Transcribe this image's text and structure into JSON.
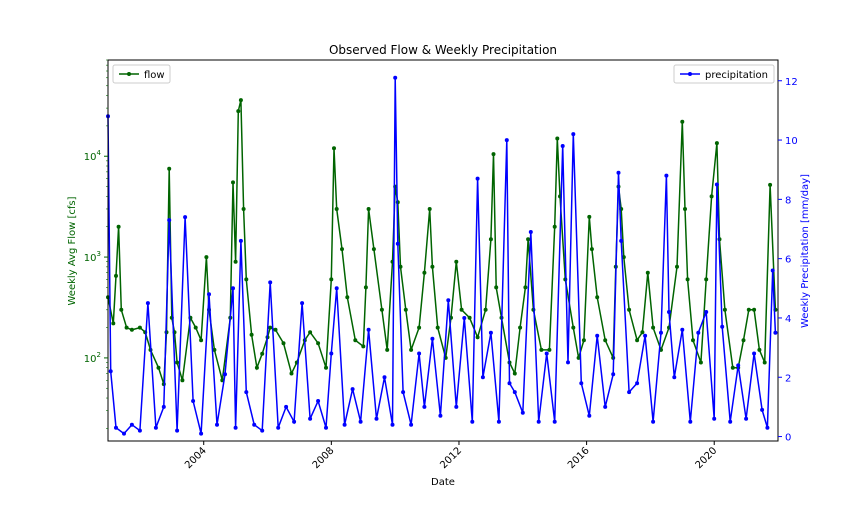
{
  "chart_data": {
    "type": "line",
    "title": "Observed Flow & Weekly Precipitation",
    "xlabel": "Date",
    "ylabel_left": "Weekly Avg Flow [cfs]",
    "ylabel_right": "Weekly Precipitation [mm/day]",
    "xlim": [
      "2001-01-01",
      "2021-12-31"
    ],
    "x_ticks": [
      "2004",
      "2008",
      "2012",
      "2016",
      "2020"
    ],
    "y_left": {
      "scale": "log",
      "ylim": [
        15,
        90000
      ],
      "ticks": [
        100,
        1000,
        10000
      ]
    },
    "y_right": {
      "scale": "linear",
      "ylim": [
        -0.15,
        12.7
      ],
      "ticks": [
        0,
        2,
        4,
        6,
        8,
        10,
        12
      ]
    },
    "legend_left": "upper-left",
    "legend_right": "upper-right",
    "colors": {
      "flow": "#006400",
      "precipitation": "#0000ff"
    },
    "grid": false,
    "series": [
      {
        "name": "flow",
        "axis": "left",
        "color": "#006400",
        "x": [
          "2001-01",
          "2001-03",
          "2001-04",
          "2001-05",
          "2001-06",
          "2001-08",
          "2001-10",
          "2002-01",
          "2002-03",
          "2002-05",
          "2002-08",
          "2002-10",
          "2002-11",
          "2002-12",
          "2003-01",
          "2003-02",
          "2003-03",
          "2003-05",
          "2003-08",
          "2003-10",
          "2003-12",
          "2004-02",
          "2004-03",
          "2004-05",
          "2004-08",
          "2004-11",
          "2004-12",
          "2005-01",
          "2005-02",
          "2005-03",
          "2005-04",
          "2005-05",
          "2005-07",
          "2005-09",
          "2005-11",
          "2006-01",
          "2006-02",
          "2006-04",
          "2006-07",
          "2006-10",
          "2006-12",
          "2007-03",
          "2007-05",
          "2007-08",
          "2007-11",
          "2008-01",
          "2008-02",
          "2008-03",
          "2008-05",
          "2008-07",
          "2008-10",
          "2009-01",
          "2009-02",
          "2009-03",
          "2009-05",
          "2009-08",
          "2009-10",
          "2009-12",
          "2010-01",
          "2010-02",
          "2010-03",
          "2010-05",
          "2010-07",
          "2010-10",
          "2010-12",
          "2011-02",
          "2011-03",
          "2011-05",
          "2011-08",
          "2011-10",
          "2011-12",
          "2012-02",
          "2012-05",
          "2012-08",
          "2012-11",
          "2013-01",
          "2013-02",
          "2013-03",
          "2013-05",
          "2013-08",
          "2013-10",
          "2013-12",
          "2014-02",
          "2014-03",
          "2014-05",
          "2014-08",
          "2014-11",
          "2015-01",
          "2015-02",
          "2015-03",
          "2015-05",
          "2015-08",
          "2015-10",
          "2015-12",
          "2016-02",
          "2016-03",
          "2016-05",
          "2016-08",
          "2016-11",
          "2016-12",
          "2017-01",
          "2017-02",
          "2017-03",
          "2017-05",
          "2017-08",
          "2017-10",
          "2017-12",
          "2018-02",
          "2018-05",
          "2018-08",
          "2018-11",
          "2019-01",
          "2019-02",
          "2019-03",
          "2019-05",
          "2019-08",
          "2019-10",
          "2019-12",
          "2020-02",
          "2020-03",
          "2020-05",
          "2020-08",
          "2020-10",
          "2020-12",
          "2021-02",
          "2021-04",
          "2021-06",
          "2021-08",
          "2021-10",
          "2021-12"
        ],
        "values": [
          400,
          220,
          650,
          2000,
          300,
          200,
          190,
          200,
          180,
          120,
          80,
          55,
          180,
          7500,
          250,
          180,
          90,
          60,
          250,
          200,
          150,
          1000,
          300,
          120,
          60,
          250,
          5500,
          900,
          28000,
          36000,
          3000,
          600,
          170,
          80,
          110,
          160,
          200,
          190,
          140,
          70,
          90,
          150,
          180,
          140,
          80,
          600,
          12000,
          3000,
          1200,
          400,
          150,
          130,
          500,
          3000,
          1200,
          300,
          120,
          900,
          5000,
          3500,
          800,
          300,
          120,
          200,
          700,
          3000,
          800,
          200,
          100,
          250,
          900,
          300,
          250,
          160,
          300,
          1500,
          10500,
          500,
          250,
          90,
          70,
          200,
          500,
          1500,
          300,
          120,
          120,
          2000,
          15000,
          4000,
          600,
          200,
          100,
          150,
          2500,
          1200,
          400,
          150,
          100,
          800,
          5000,
          3000,
          1000,
          300,
          150,
          180,
          700,
          200,
          120,
          200,
          800,
          22000,
          3000,
          600,
          150,
          90,
          600,
          4000,
          13500,
          1500,
          300,
          80,
          80,
          150,
          300,
          300,
          120,
          90,
          5200,
          300
        ]
      },
      {
        "name": "precipitation",
        "axis": "right",
        "color": "#0000ff",
        "x": [
          "2001-01",
          "2001-02",
          "2001-04",
          "2001-07",
          "2001-10",
          "2002-01",
          "2002-04",
          "2002-07",
          "2002-10",
          "2002-12",
          "2003-03",
          "2003-06",
          "2003-09",
          "2003-12",
          "2004-03",
          "2004-06",
          "2004-09",
          "2004-12",
          "2005-01",
          "2005-03",
          "2005-05",
          "2005-08",
          "2005-11",
          "2006-02",
          "2006-05",
          "2006-08",
          "2006-11",
          "2007-02",
          "2007-05",
          "2007-08",
          "2007-11",
          "2008-01",
          "2008-03",
          "2008-06",
          "2008-09",
          "2008-12",
          "2009-03",
          "2009-06",
          "2009-09",
          "2009-12",
          "2010-01",
          "2010-02",
          "2010-04",
          "2010-07",
          "2010-10",
          "2010-12",
          "2011-03",
          "2011-06",
          "2011-09",
          "2011-12",
          "2012-03",
          "2012-06",
          "2012-08",
          "2012-10",
          "2013-01",
          "2013-04",
          "2013-07",
          "2013-08",
          "2013-10",
          "2014-01",
          "2014-04",
          "2014-07",
          "2014-10",
          "2015-01",
          "2015-04",
          "2015-06",
          "2015-08",
          "2015-11",
          "2016-02",
          "2016-05",
          "2016-08",
          "2016-11",
          "2017-01",
          "2017-02",
          "2017-05",
          "2017-08",
          "2017-11",
          "2018-02",
          "2018-05",
          "2018-07",
          "2018-08",
          "2018-10",
          "2019-01",
          "2019-04",
          "2019-07",
          "2019-10",
          "2020-01",
          "2020-02",
          "2020-04",
          "2020-07",
          "2020-10",
          "2021-01",
          "2021-04",
          "2021-07",
          "2021-09",
          "2021-11",
          "2021-12"
        ],
        "values": [
          10.8,
          2.2,
          0.3,
          0.1,
          0.4,
          0.2,
          4.5,
          0.3,
          1.0,
          7.3,
          0.2,
          7.4,
          1.2,
          0.1,
          4.8,
          0.4,
          2.1,
          5.0,
          0.3,
          6.6,
          1.5,
          0.4,
          0.2,
          5.2,
          0.3,
          1.0,
          0.5,
          4.5,
          0.6,
          1.2,
          0.3,
          2.8,
          5.0,
          0.4,
          1.6,
          0.5,
          3.6,
          0.6,
          2.0,
          0.4,
          12.1,
          6.5,
          1.5,
          0.4,
          2.8,
          1.0,
          3.3,
          0.7,
          4.6,
          1.0,
          4.0,
          0.5,
          8.7,
          2.0,
          3.5,
          0.5,
          10.0,
          1.8,
          1.5,
          0.8,
          6.9,
          0.5,
          2.8,
          0.5,
          9.8,
          2.5,
          10.2,
          1.8,
          0.7,
          3.4,
          1.0,
          2.1,
          8.9,
          6.6,
          1.5,
          1.8,
          3.4,
          0.5,
          3.5,
          8.8,
          4.2,
          2.0,
          3.6,
          0.5,
          3.5,
          4.2,
          0.6,
          8.5,
          3.7,
          0.5,
          2.4,
          0.6,
          2.8,
          0.9,
          0.3,
          5.6,
          3.5
        ]
      }
    ]
  }
}
